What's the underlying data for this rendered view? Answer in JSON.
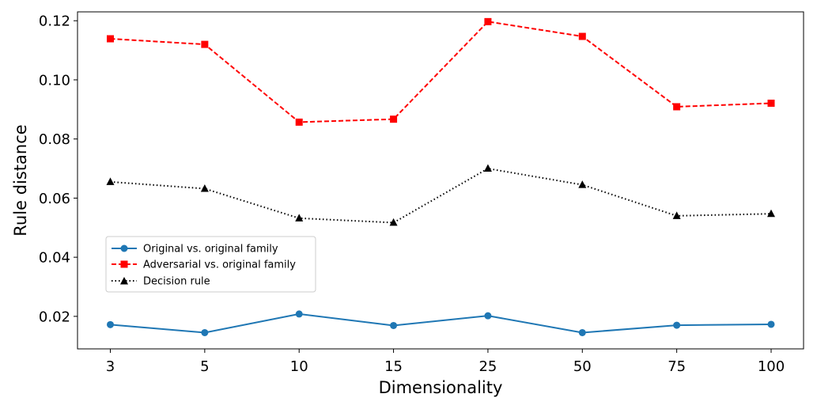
{
  "chart_data": {
    "type": "line",
    "title": "",
    "xlabel": "Dimensionality",
    "ylabel": "Rule distance",
    "categories": [
      "3",
      "5",
      "10",
      "15",
      "25",
      "50",
      "75",
      "100"
    ],
    "ylim": [
      0.009,
      0.123
    ],
    "yticks": [
      0.02,
      0.04,
      0.06,
      0.08,
      0.1,
      0.12
    ],
    "ytick_labels": [
      "0.02",
      "0.04",
      "0.06",
      "0.08",
      "0.10",
      "0.12"
    ],
    "grid": false,
    "legend_position": "center-left",
    "series": [
      {
        "name": "Original vs. original family",
        "color": "#1f77b4",
        "linestyle": "solid",
        "marker": "circle",
        "values": [
          0.0172,
          0.0145,
          0.0208,
          0.0169,
          0.0202,
          0.0145,
          0.017,
          0.0173
        ]
      },
      {
        "name": "Adversarial vs. original family",
        "color": "#ff0000",
        "linestyle": "dashed",
        "marker": "square",
        "values": [
          0.1139,
          0.112,
          0.0857,
          0.0867,
          0.1197,
          0.1147,
          0.0909,
          0.0921
        ]
      },
      {
        "name": "Decision rule",
        "color": "#000000",
        "linestyle": "dotted",
        "marker": "triangle",
        "values": [
          0.0655,
          0.0632,
          0.0532,
          0.0517,
          0.07,
          0.0645,
          0.054,
          0.0547
        ]
      }
    ]
  }
}
